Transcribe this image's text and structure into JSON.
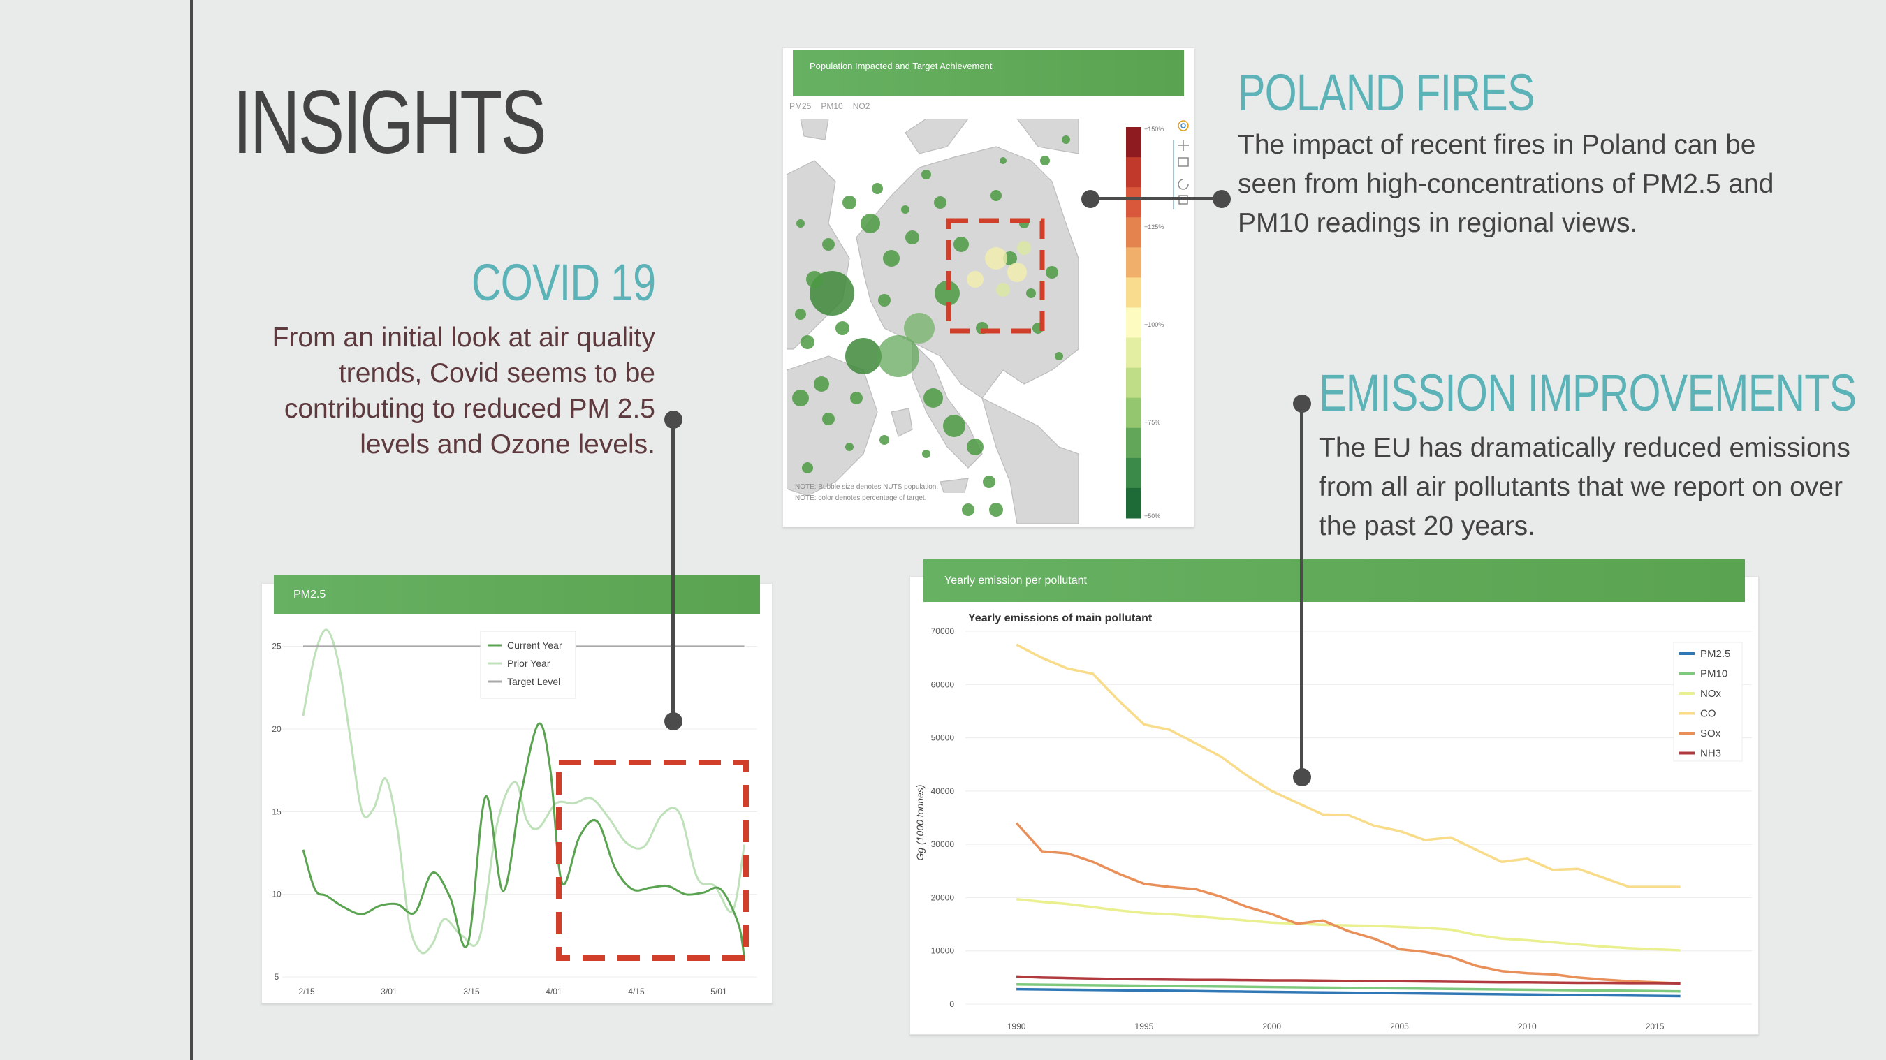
{
  "slide": {
    "title": "INSIGHTS",
    "covid": {
      "title": "COVID 19",
      "body": "From an initial look at air quality trends, Covid seems to be contributing to reduced PM 2.5 levels and Ozone levels."
    },
    "poland": {
      "title": "POLAND FIRES",
      "body": "The impact of recent fires in Poland can be seen from high-concentrations of PM2.5 and PM10 readings in regional views."
    },
    "emission": {
      "title": "EMISSION IMPROVEMENTS",
      "body": "The EU has dramatically reduced emissions from all air pollutants that we report on over the past 20 years."
    }
  },
  "map_card": {
    "banner": "Population Impacted and Target Achievement",
    "tabs": [
      "PM25",
      "PM10",
      "NO2"
    ],
    "scale_labels": [
      "+150%",
      "+125%",
      "+100%",
      "+75%",
      "+50%"
    ],
    "scale_colors": [
      "#8e1b20",
      "#c0392b",
      "#d9573b",
      "#e5834f",
      "#f0b06b",
      "#f9dc8e",
      "#fdfbc0",
      "#e3eea3",
      "#bfdd86",
      "#93c66e",
      "#62a65a",
      "#3b8a4a",
      "#1f6b37"
    ],
    "notes": [
      "NOTE: Bubble size denotes NUTS population.",
      "NOTE: color denotes percentage of target."
    ],
    "toolbar_icons": [
      "color-wheel-icon",
      "pan-icon",
      "box-zoom-icon",
      "reset-icon",
      "save-icon"
    ]
  },
  "pm_card": {
    "banner": "PM2.5",
    "chart_data": {
      "type": "line",
      "title": "",
      "xlabel": "",
      "ylabel": "",
      "x_ticks": [
        "2/15",
        "3/01",
        "3/15",
        "4/01",
        "4/15",
        "5/01"
      ],
      "y_ticks": [
        5,
        10,
        15,
        20,
        25
      ],
      "ylim": [
        5,
        26
      ],
      "x_range": [
        0,
        76
      ],
      "legend_position": "top-center",
      "series": [
        {
          "name": "Current Year",
          "color": "#5aa350",
          "x": [
            0,
            2,
            4,
            7,
            10,
            13,
            16,
            19,
            22,
            25,
            28,
            31,
            34,
            37,
            40,
            42,
            44,
            47,
            50,
            53,
            56,
            59,
            62,
            65,
            68,
            71,
            74,
            75
          ],
          "y": [
            12.7,
            10.3,
            9.9,
            9.2,
            8.8,
            9.3,
            9.4,
            8.9,
            11.3,
            9.8,
            7.0,
            15.9,
            10.2,
            16.0,
            20.3,
            17.6,
            10.7,
            13.5,
            14.4,
            11.6,
            10.3,
            10.4,
            10.5,
            10.0,
            10.1,
            10.3,
            8.2,
            6.1
          ]
        },
        {
          "name": "Prior Year",
          "color": "#bfe1ba",
          "x": [
            0,
            2,
            4,
            6,
            8,
            10,
            12,
            14,
            16,
            18,
            20,
            22,
            24,
            27,
            30,
            33,
            36,
            38,
            40,
            43,
            46,
            49,
            52,
            55,
            58,
            61,
            64,
            67,
            70,
            73,
            75
          ],
          "y": [
            20.8,
            24.5,
            26.0,
            24.0,
            19.5,
            15.0,
            15.2,
            17.0,
            14.0,
            8.3,
            6.5,
            7.0,
            8.5,
            7.5,
            7.4,
            14.3,
            16.8,
            14.5,
            14.0,
            15.5,
            15.5,
            15.8,
            14.6,
            13.1,
            12.9,
            14.8,
            14.9,
            11.0,
            10.5,
            9.0,
            13.0
          ]
        },
        {
          "name": "Target Level",
          "color": "#a9a9a9",
          "x": [
            0,
            75
          ],
          "y": [
            25,
            25
          ]
        }
      ]
    }
  },
  "emission_card": {
    "banner": "Yearly emission per pollutant",
    "chart_data": {
      "type": "line",
      "title": "Yearly emissions of main pollutant",
      "xlabel": "",
      "ylabel": "Gg (1000 tonnes)",
      "x_ticks": [
        1990,
        1995,
        2000,
        2005,
        2010,
        2015
      ],
      "y_ticks": [
        0,
        10000,
        20000,
        30000,
        40000,
        50000,
        60000,
        70000
      ],
      "xlim": [
        1988,
        2018.8
      ],
      "ylim": [
        0,
        70000
      ],
      "legend_position": "top-right",
      "x": [
        1990,
        1991,
        1992,
        1993,
        1994,
        1995,
        1996,
        1997,
        1998,
        1999,
        2000,
        2001,
        2002,
        2003,
        2004,
        2005,
        2006,
        2007,
        2008,
        2009,
        2010,
        2011,
        2012,
        2013,
        2014,
        2015,
        2016
      ],
      "series": [
        {
          "name": "PM2.5",
          "color": "#2f77b5",
          "y": [
            2800,
            2750,
            2700,
            2650,
            2600,
            2550,
            2500,
            2450,
            2400,
            2350,
            2300,
            2250,
            2200,
            2150,
            2100,
            2050,
            2000,
            1950,
            1900,
            1850,
            1800,
            1750,
            1700,
            1650,
            1600,
            1550,
            1500
          ]
        },
        {
          "name": "PM10",
          "color": "#7fc97f",
          "y": [
            3700,
            3650,
            3600,
            3550,
            3500,
            3450,
            3400,
            3350,
            3300,
            3250,
            3200,
            3150,
            3100,
            3050,
            3000,
            2950,
            2900,
            2850,
            2800,
            2750,
            2700,
            2650,
            2600,
            2550,
            2500,
            2450,
            2400
          ]
        },
        {
          "name": "NOx",
          "color": "#eaf08f",
          "y": [
            19700,
            19200,
            18800,
            18200,
            17600,
            17100,
            16900,
            16500,
            16100,
            15700,
            15300,
            15100,
            14900,
            14800,
            14700,
            14500,
            14300,
            14000,
            13000,
            12300,
            12000,
            11600,
            11200,
            10800,
            10500,
            10300,
            10100
          ]
        },
        {
          "name": "CO",
          "color": "#f8dc8a",
          "y": [
            67500,
            65000,
            63000,
            62000,
            57000,
            52500,
            51500,
            49000,
            46500,
            43000,
            40000,
            37800,
            35600,
            35500,
            33500,
            32500,
            30800,
            31300,
            29000,
            26700,
            27300,
            25200,
            25400,
            23700,
            22000,
            22000,
            22000
          ]
        },
        {
          "name": "SOx",
          "color": "#e9905a",
          "y": [
            34000,
            28700,
            28300,
            26700,
            24500,
            22600,
            22000,
            21600,
            20200,
            18300,
            16900,
            15100,
            15700,
            13700,
            12300,
            10300,
            9800,
            8900,
            7200,
            6200,
            5800,
            5600,
            5000,
            4600,
            4300,
            4100,
            3900
          ]
        },
        {
          "name": "NH3",
          "color": "#b03a3e",
          "y": [
            5200,
            5000,
            4900,
            4800,
            4700,
            4650,
            4600,
            4550,
            4550,
            4500,
            4450,
            4450,
            4400,
            4350,
            4300,
            4300,
            4250,
            4200,
            4150,
            4100,
            4100,
            4050,
            4000,
            4000,
            3950,
            3950,
            3900
          ]
        }
      ]
    }
  }
}
